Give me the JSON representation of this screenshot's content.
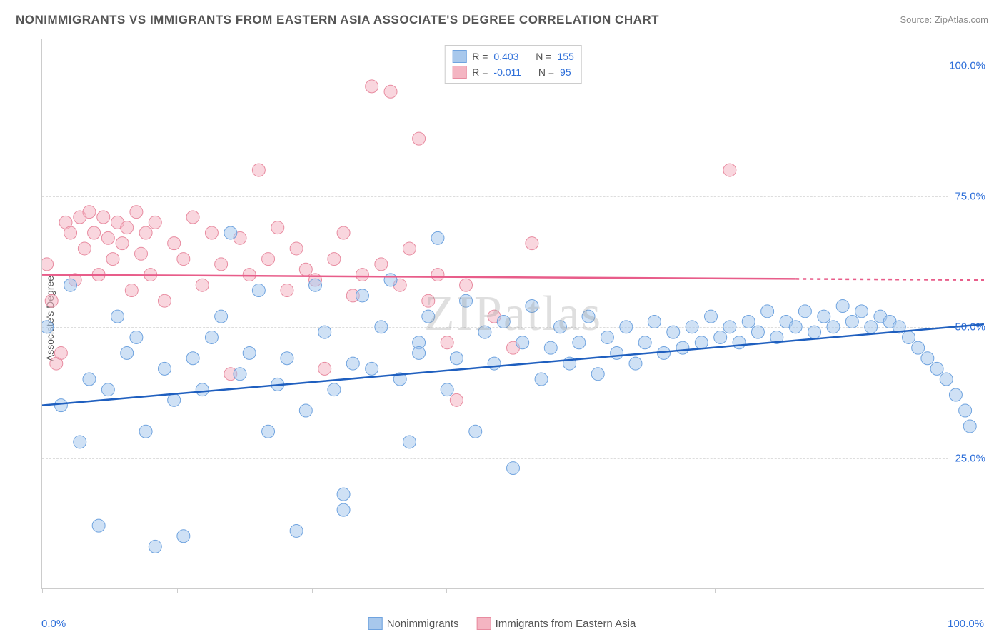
{
  "title": "NONIMMIGRANTS VS IMMIGRANTS FROM EASTERN ASIA ASSOCIATE'S DEGREE CORRELATION CHART",
  "source": "Source: ZipAtlas.com",
  "watermark": "ZIPatlas",
  "yaxis_title": "Associate's Degree",
  "chart": {
    "type": "scatter",
    "xlim": [
      0,
      100
    ],
    "ylim": [
      0,
      105
    ],
    "x_min_label": "0.0%",
    "x_max_label": "100.0%",
    "ytick_positions": [
      25,
      50,
      75,
      100
    ],
    "ytick_labels": [
      "25.0%",
      "50.0%",
      "75.0%",
      "100.0%"
    ],
    "xtick_positions": [
      0,
      14.3,
      28.6,
      42.9,
      57.1,
      71.4,
      85.7,
      100
    ],
    "grid_color": "#dddddd",
    "background_color": "#ffffff",
    "axis_color": "#cccccc",
    "tick_label_color": "#2e6fd9",
    "tick_fontsize": 15,
    "marker_radius": 9,
    "line_width": 2.5,
    "series": [
      {
        "name": "Nonimmigrants",
        "color_fill": "#a8c8ec",
        "color_stroke": "#6fa3df",
        "fill_opacity": 0.55,
        "R": "0.403",
        "N": "155",
        "trend": {
          "x1": 0,
          "y1": 35,
          "x2": 100,
          "y2": 50.5,
          "color": "#1f5fbf",
          "dashed_from": null
        },
        "points": [
          [
            0.5,
            50
          ],
          [
            2,
            35
          ],
          [
            3,
            58
          ],
          [
            4,
            28
          ],
          [
            5,
            40
          ],
          [
            6,
            12
          ],
          [
            7,
            38
          ],
          [
            8,
            52
          ],
          [
            9,
            45
          ],
          [
            10,
            48
          ],
          [
            11,
            30
          ],
          [
            12,
            8
          ],
          [
            13,
            42
          ],
          [
            14,
            36
          ],
          [
            15,
            10
          ],
          [
            16,
            44
          ],
          [
            17,
            38
          ],
          [
            18,
            48
          ],
          [
            19,
            52
          ],
          [
            20,
            68
          ],
          [
            21,
            41
          ],
          [
            22,
            45
          ],
          [
            23,
            57
          ],
          [
            24,
            30
          ],
          [
            25,
            39
          ],
          [
            26,
            44
          ],
          [
            27,
            11
          ],
          [
            28,
            34
          ],
          [
            29,
            58
          ],
          [
            30,
            49
          ],
          [
            31,
            38
          ],
          [
            32,
            15
          ],
          [
            32,
            18
          ],
          [
            33,
            43
          ],
          [
            34,
            56
          ],
          [
            35,
            42
          ],
          [
            36,
            50
          ],
          [
            37,
            59
          ],
          [
            38,
            40
          ],
          [
            39,
            28
          ],
          [
            40,
            47
          ],
          [
            40,
            45
          ],
          [
            41,
            52
          ],
          [
            42,
            67
          ],
          [
            43,
            38
          ],
          [
            44,
            44
          ],
          [
            45,
            55
          ],
          [
            46,
            30
          ],
          [
            47,
            49
          ],
          [
            48,
            43
          ],
          [
            49,
            51
          ],
          [
            50,
            23
          ],
          [
            51,
            47
          ],
          [
            52,
            54
          ],
          [
            53,
            40
          ],
          [
            54,
            46
          ],
          [
            55,
            50
          ],
          [
            56,
            43
          ],
          [
            57,
            47
          ],
          [
            58,
            52
          ],
          [
            59,
            41
          ],
          [
            60,
            48
          ],
          [
            61,
            45
          ],
          [
            62,
            50
          ],
          [
            63,
            43
          ],
          [
            64,
            47
          ],
          [
            65,
            51
          ],
          [
            66,
            45
          ],
          [
            67,
            49
          ],
          [
            68,
            46
          ],
          [
            69,
            50
          ],
          [
            70,
            47
          ],
          [
            71,
            52
          ],
          [
            72,
            48
          ],
          [
            73,
            50
          ],
          [
            74,
            47
          ],
          [
            75,
            51
          ],
          [
            76,
            49
          ],
          [
            77,
            53
          ],
          [
            78,
            48
          ],
          [
            79,
            51
          ],
          [
            80,
            50
          ],
          [
            81,
            53
          ],
          [
            82,
            49
          ],
          [
            83,
            52
          ],
          [
            84,
            50
          ],
          [
            85,
            54
          ],
          [
            86,
            51
          ],
          [
            87,
            53
          ],
          [
            88,
            50
          ],
          [
            89,
            52
          ],
          [
            90,
            51
          ],
          [
            91,
            50
          ],
          [
            92,
            48
          ],
          [
            93,
            46
          ],
          [
            94,
            44
          ],
          [
            95,
            42
          ],
          [
            96,
            40
          ],
          [
            97,
            37
          ],
          [
            98,
            34
          ],
          [
            98.5,
            31
          ]
        ]
      },
      {
        "name": "Immigrants from Eastern Asia",
        "color_fill": "#f4b5c2",
        "color_stroke": "#e88ba0",
        "fill_opacity": 0.55,
        "R": "-0.011",
        "N": "95",
        "trend": {
          "x1": 0,
          "y1": 60,
          "x2": 100,
          "y2": 59,
          "color": "#e85d8a",
          "dashed_from": 80
        },
        "points": [
          [
            0.5,
            62
          ],
          [
            1,
            55
          ],
          [
            1.5,
            43
          ],
          [
            2,
            45
          ],
          [
            2.5,
            70
          ],
          [
            3,
            68
          ],
          [
            3.5,
            59
          ],
          [
            4,
            71
          ],
          [
            4.5,
            65
          ],
          [
            5,
            72
          ],
          [
            5.5,
            68
          ],
          [
            6,
            60
          ],
          [
            6.5,
            71
          ],
          [
            7,
            67
          ],
          [
            7.5,
            63
          ],
          [
            8,
            70
          ],
          [
            8.5,
            66
          ],
          [
            9,
            69
          ],
          [
            9.5,
            57
          ],
          [
            10,
            72
          ],
          [
            10.5,
            64
          ],
          [
            11,
            68
          ],
          [
            11.5,
            60
          ],
          [
            12,
            70
          ],
          [
            13,
            55
          ],
          [
            14,
            66
          ],
          [
            15,
            63
          ],
          [
            16,
            71
          ],
          [
            17,
            58
          ],
          [
            18,
            68
          ],
          [
            19,
            62
          ],
          [
            20,
            41
          ],
          [
            21,
            67
          ],
          [
            22,
            60
          ],
          [
            23,
            80
          ],
          [
            24,
            63
          ],
          [
            25,
            69
          ],
          [
            26,
            57
          ],
          [
            27,
            65
          ],
          [
            28,
            61
          ],
          [
            29,
            59
          ],
          [
            30,
            42
          ],
          [
            31,
            63
          ],
          [
            32,
            68
          ],
          [
            33,
            56
          ],
          [
            34,
            60
          ],
          [
            35,
            96
          ],
          [
            36,
            62
          ],
          [
            37,
            95
          ],
          [
            38,
            58
          ],
          [
            39,
            65
          ],
          [
            40,
            86
          ],
          [
            41,
            55
          ],
          [
            42,
            60
          ],
          [
            43,
            47
          ],
          [
            44,
            36
          ],
          [
            45,
            58
          ],
          [
            48,
            52
          ],
          [
            50,
            46
          ],
          [
            52,
            66
          ],
          [
            73,
            80
          ]
        ]
      }
    ]
  },
  "legend_top_format": {
    "R_label": "R =",
    "N_label": "N ="
  },
  "legend_bottom": {
    "series1_label": "Nonimmigrants",
    "series2_label": "Immigrants from Eastern Asia"
  }
}
